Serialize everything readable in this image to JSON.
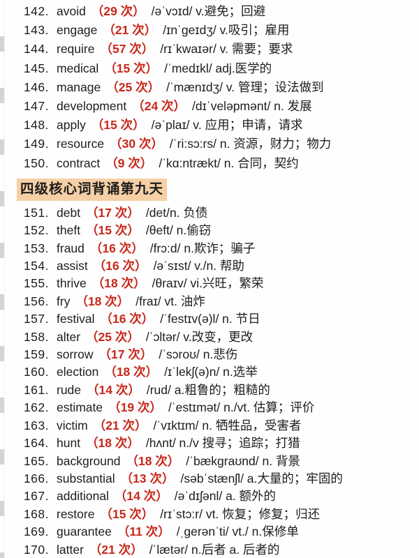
{
  "colors": {
    "accent_red": "#c8271b",
    "highlight": "#f6cfa6",
    "text": "#1d1d1d"
  },
  "section_header": "四级核心词背诵第九天",
  "entries_part1": [
    {
      "num": "142.",
      "word": "avoid",
      "count": "（29 次）",
      "rest": "/əˈvɔɪd/ v.避免；回避"
    },
    {
      "num": "143.",
      "word": "engage",
      "count": "（21 次）",
      "rest": "/ɪnˈgeɪdʒ/ v.吸引；雇用"
    },
    {
      "num": "144.",
      "word": "require",
      "count": "（57 次）",
      "rest": "/rɪˈkwaɪər/ v. 需要；要求"
    },
    {
      "num": "145.",
      "word": "medical",
      "count": "（15 次）",
      "rest": "/ˈmedɪkl/ adj.医学的"
    },
    {
      "num": "146.",
      "word": "manage",
      "count": "（25 次）",
      "rest": "/ˈmænɪdʒ/ v. 管理；设法做到"
    },
    {
      "num": "147.",
      "word": "development",
      "count": "（24 次）",
      "rest": "/dɪˈveləpmənt/ n. 发展"
    },
    {
      "num": "148.",
      "word": "apply",
      "count": "（15 次）",
      "rest": "/əˈplaɪ/ v. 应用；申请，请求"
    },
    {
      "num": "149.",
      "word": "resource",
      "count": "（30 次）",
      "rest": "/ˈri:sɔ:rs/ n. 资源，财力；物力"
    },
    {
      "num": "150.",
      "word": "contract",
      "count": "（9 次）",
      "rest": "/ˈkɑ:ntrækt/ n. 合同，契约"
    }
  ],
  "entries_part2": [
    {
      "num": "151.",
      "word": "debt",
      "count": "（17 次）",
      "rest": "/det/n. 负债"
    },
    {
      "num": "152.",
      "word": "theft",
      "count": "（15 次）",
      "rest": "/θeft/ n.偷窃"
    },
    {
      "num": "153.",
      "word": "fraud",
      "count": "（16 次）",
      "rest": "/frɔ:d/ n.欺诈；骗子"
    },
    {
      "num": "154.",
      "word": "assist",
      "count": "（16 次）",
      "rest": "/əˈsɪst/ v./n. 帮助"
    },
    {
      "num": "155.",
      "word": "thrive",
      "count": "（18 次）",
      "rest": "/θraɪv/ vi.兴旺，繁荣"
    },
    {
      "num": "156.",
      "word": "fry",
      "count": "（18 次）",
      "rest": "/fraɪ/ vt. 油炸"
    },
    {
      "num": "157.",
      "word": "festival",
      "count": "（16 次）",
      "rest": "/ˈfestɪv(ə)l/ n. 节日"
    },
    {
      "num": "158.",
      "word": "alter",
      "count": "（25 次）",
      "rest": "/ˈɔltər/ v.改变，更改"
    },
    {
      "num": "159.",
      "word": "sorrow",
      "count": "（17 次）",
      "rest": "/ˈsɔroʊ/ n.悲伤"
    },
    {
      "num": "160.",
      "word": "election",
      "count": "（18 次）",
      "rest": "/ɪˈlekʃ(ə)n/ n.选举"
    },
    {
      "num": "161.",
      "word": "rude",
      "count": "（14 次）",
      "rest": "/rud/ a.粗鲁的；粗糙的"
    },
    {
      "num": "162.",
      "word": "estimate",
      "count": "（19 次）",
      "rest": "/ˈestɪmət/ n./vt. 估算；评价"
    },
    {
      "num": "163.",
      "word": "victim",
      "count": "（21 次）",
      "rest": "/ˈvɪktɪm/ n. 牺牲品，受害者"
    },
    {
      "num": "164.",
      "word": "hunt",
      "count": "（18 次）",
      "rest": "/hʌnt/ n./v 搜寻；追踪；打猎"
    },
    {
      "num": "165.",
      "word": "background",
      "count": "（18 次）",
      "rest": "/ˈbækgraʊnd/ n. 背景"
    },
    {
      "num": "166.",
      "word": "substantial",
      "count": "（13 次）",
      "rest": "/səbˈstænʃl/ a.大量的；牢固的"
    },
    {
      "num": "167.",
      "word": "additional",
      "count": "（14 次）",
      "rest": "/əˈdɪʃənl/ a. 额外的"
    },
    {
      "num": "168.",
      "word": "restore",
      "count": "（15 次）",
      "rest": "/rɪˈstɔ:r/ vt. 恢复；修复；归还"
    },
    {
      "num": "169.",
      "word": "guarantee",
      "count": "（11 次）",
      "rest": "/ˌgerənˈti/ vt./ n.保修单"
    },
    {
      "num": "170.",
      "word": "latter",
      "count": "（21 次）",
      "rest": "/ˈlætər/ n.后者 a. 后者的"
    }
  ]
}
